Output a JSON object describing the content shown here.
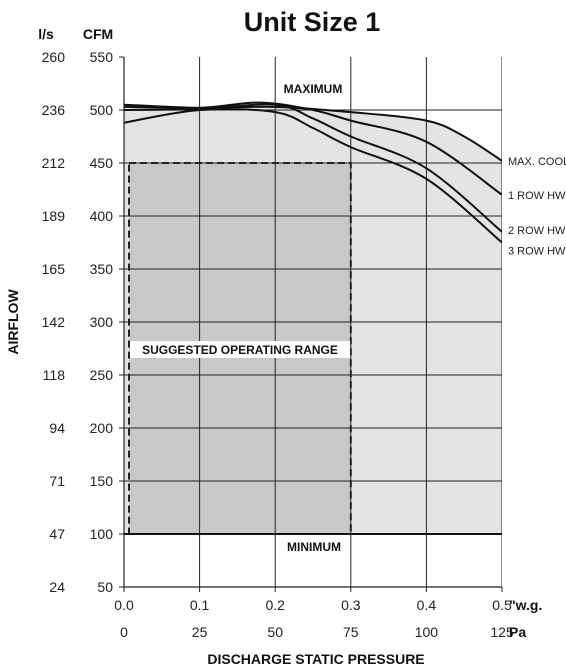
{
  "chart_data": {
    "type": "line",
    "title": "Unit Size 1",
    "xlabel": "DISCHARGE STATIC PRESSURE",
    "ylabel": "AIRFLOW",
    "x_unit_primary": "\"w.g.",
    "x_unit_secondary": "Pa",
    "y_unit_primary": "CFM",
    "y_unit_secondary": "l/s",
    "xlim": [
      0,
      0.5
    ],
    "ylim": [
      50,
      550
    ],
    "x_ticks": [
      "0.0",
      "0.1",
      "0.2",
      "0.3",
      "0.4",
      "0.5"
    ],
    "x_ticks_secondary": [
      "0",
      "25",
      "50",
      "75",
      "100",
      "125"
    ],
    "y_ticks": [
      "50",
      "100",
      "150",
      "200",
      "250",
      "300",
      "350",
      "400",
      "450",
      "500",
      "550"
    ],
    "y_ticks_secondary": [
      "24",
      "47",
      "71",
      "94",
      "118",
      "142",
      "165",
      "189",
      "212",
      "236",
      "260"
    ],
    "grid": true,
    "annotations": {
      "maximum": "MAXIMUM",
      "minimum": "MINIMUM",
      "range": "SUGGESTED OPERATING RANGE"
    },
    "minimum_cfm": 100,
    "operating_range": {
      "x": [
        0.0,
        0.3
      ],
      "y": [
        100,
        450
      ]
    },
    "series": [
      {
        "name": "MAX. COOLING",
        "x": [
          0.0,
          0.1,
          0.2,
          0.3,
          0.4,
          0.45,
          0.5
        ],
        "y": [
          505,
          502,
          503,
          498,
          490,
          475,
          452
        ]
      },
      {
        "name": "1 ROW HW",
        "x": [
          0.0,
          0.1,
          0.18,
          0.25,
          0.3,
          0.4,
          0.5
        ],
        "y": [
          503,
          502,
          507,
          500,
          490,
          470,
          420
        ]
      },
      {
        "name": "2 ROW HW",
        "x": [
          0.0,
          0.1,
          0.2,
          0.25,
          0.3,
          0.4,
          0.5
        ],
        "y": [
          500,
          501,
          505,
          492,
          475,
          445,
          385
        ]
      },
      {
        "name": "3 ROW HW",
        "x": [
          0.0,
          0.1,
          0.2,
          0.25,
          0.3,
          0.4,
          0.5
        ],
        "y": [
          488,
          500,
          498,
          483,
          465,
          435,
          375
        ]
      }
    ]
  }
}
